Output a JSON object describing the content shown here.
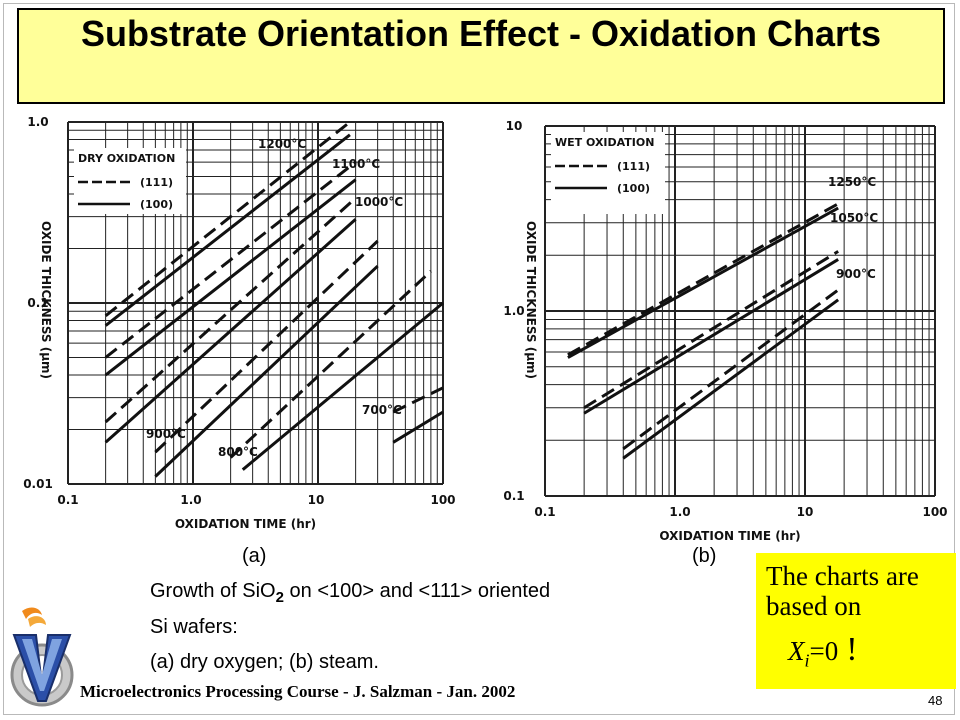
{
  "title": "Substrate Orientation Effect - Oxidation Charts",
  "chart_data": [
    {
      "type": "line",
      "panel_label": "(a)",
      "legend_title": "DRY OXIDATION",
      "legend": [
        {
          "style": "dashed",
          "name": "(111)"
        },
        {
          "style": "solid",
          "name": "(100)"
        }
      ],
      "xlabel": "OXIDATION TIME (hr)",
      "ylabel": "OXIDE THICKNESS (μm)",
      "xscale": "log",
      "yscale": "log",
      "xlim": [
        0.1,
        100
      ],
      "ylim": [
        0.01,
        1
      ],
      "x_ticks": [
        "0.1",
        "1.0",
        "10",
        "100"
      ],
      "y_ticks": [
        "0.01",
        "0.1",
        "1.0"
      ],
      "grid": true,
      "series": [
        {
          "name": "1200°C",
          "orientation": "(111)",
          "x": [
            0.2,
            18
          ],
          "y": [
            0.085,
            1.0
          ]
        },
        {
          "name": "1200°C",
          "orientation": "(100)",
          "x": [
            0.2,
            18
          ],
          "y": [
            0.075,
            0.85
          ]
        },
        {
          "name": "1100°C",
          "orientation": "(111)",
          "x": [
            0.2,
            20
          ],
          "y": [
            0.05,
            0.6
          ]
        },
        {
          "name": "1100°C",
          "orientation": "(100)",
          "x": [
            0.2,
            20
          ],
          "y": [
            0.04,
            0.48
          ]
        },
        {
          "name": "1000°C",
          "orientation": "(111)",
          "x": [
            0.2,
            20
          ],
          "y": [
            0.022,
            0.38
          ]
        },
        {
          "name": "1000°C",
          "orientation": "(100)",
          "x": [
            0.2,
            20
          ],
          "y": [
            0.017,
            0.29
          ]
        },
        {
          "name": "900°C",
          "orientation": "(111)",
          "x": [
            0.5,
            30
          ],
          "y": [
            0.015,
            0.22
          ]
        },
        {
          "name": "900°C",
          "orientation": "(100)",
          "x": [
            0.5,
            30
          ],
          "y": [
            0.011,
            0.16
          ]
        },
        {
          "name": "800°C",
          "orientation": "(111)",
          "x": [
            2,
            80
          ],
          "y": [
            0.014,
            0.15
          ]
        },
        {
          "name": "800°C",
          "orientation": "(100)",
          "x": [
            2.5,
            100
          ],
          "y": [
            0.012,
            0.1
          ]
        },
        {
          "name": "700°C",
          "orientation": "(111)",
          "x": [
            40,
            100
          ],
          "y": [
            0.025,
            0.034
          ]
        },
        {
          "name": "700°C",
          "orientation": "(100)",
          "x": [
            40,
            100
          ],
          "y": [
            0.017,
            0.025
          ]
        }
      ],
      "annotations": [
        "1200°C",
        "1100°C",
        "1000°C",
        "900°C",
        "800°C",
        "700°C"
      ]
    },
    {
      "type": "line",
      "panel_label": "(b)",
      "legend_title": "WET OXIDATION",
      "legend": [
        {
          "style": "dashed",
          "name": "(111)"
        },
        {
          "style": "solid",
          "name": "(100)"
        }
      ],
      "xlabel": "OXIDATION TIME (hr)",
      "ylabel": "OXIDE THICKNESS (μm)",
      "xscale": "log",
      "yscale": "log",
      "xlim": [
        0.1,
        100
      ],
      "ylim": [
        0.1,
        10
      ],
      "x_ticks": [
        "0.1",
        "1.0",
        "10",
        "100"
      ],
      "y_ticks": [
        "0.1",
        "1.0",
        "10"
      ],
      "grid": true,
      "series": [
        {
          "name": "1250°C",
          "orientation": "(111)",
          "x": [
            0.15,
            18
          ],
          "y": [
            0.58,
            3.8
          ]
        },
        {
          "name": "1250°C",
          "orientation": "(100)",
          "x": [
            0.15,
            18
          ],
          "y": [
            0.56,
            3.6
          ]
        },
        {
          "name": "1050°C",
          "orientation": "(111)",
          "x": [
            0.2,
            18
          ],
          "y": [
            0.3,
            2.1
          ]
        },
        {
          "name": "1050°C",
          "orientation": "(100)",
          "x": [
            0.2,
            18
          ],
          "y": [
            0.28,
            1.9
          ]
        },
        {
          "name": "900°C",
          "orientation": "(111)",
          "x": [
            0.4,
            18
          ],
          "y": [
            0.18,
            1.3
          ]
        },
        {
          "name": "900°C",
          "orientation": "(100)",
          "x": [
            0.4,
            18
          ],
          "y": [
            0.16,
            1.15
          ]
        }
      ],
      "annotations": [
        "1250°C",
        "1050°C",
        "900°C"
      ]
    }
  ],
  "caption": {
    "label_a": "(a)",
    "label_b": "(b)",
    "line1_prefix": "Growth of SiO",
    "line1_sub": "2",
    "line1_suffix": " on <100> and <111> oriented",
    "line2": "Si wafers:",
    "line3": "(a) dry oxygen; (b) steam."
  },
  "note": {
    "line1": "The charts are",
    "line2": "based on",
    "xi_var": "X",
    "xi_sub": "i",
    "xi_rest": "=0",
    "bang": "!"
  },
  "footer": "Microelectronics Processing Course - J. Salzman - Jan. 2002",
  "page_number": "48",
  "colors": {
    "title_bg": "#ffff99",
    "note_bg": "#ffff00",
    "line": "#111111"
  }
}
